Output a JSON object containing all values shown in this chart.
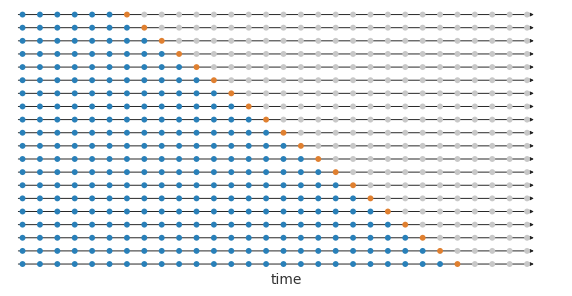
{
  "n_rows": 20,
  "n_total_dots": 30,
  "min_training": 6,
  "blue_color": "#2980b9",
  "orange_color": "#e08030",
  "gray_color": "#c8c8c8",
  "background_color": "#ffffff",
  "xlabel": "time",
  "xlabel_fontsize": 10,
  "dot_size": 18,
  "arrow_color": "#222222",
  "line_lw": 0.7,
  "arrow_mutation_scale": 5
}
